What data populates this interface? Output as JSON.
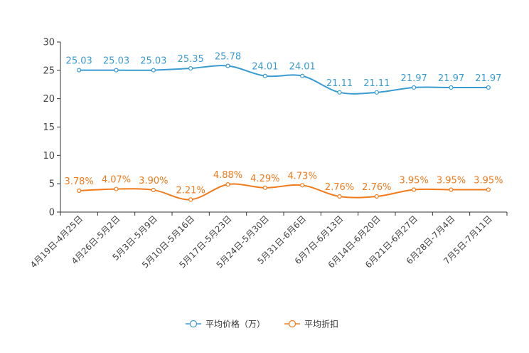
{
  "chart_data": {
    "type": "line",
    "title": "",
    "xlabel": "",
    "ylabel": "",
    "ylim": [
      0,
      30
    ],
    "yticks": [
      0,
      5,
      10,
      15,
      20,
      25,
      30
    ],
    "grid": false,
    "legend_position": "bottom-center",
    "categories": [
      "4月19日-4月25日",
      "4月26日-5月2日",
      "5月3日-5月9日",
      "5月10日-5月16日",
      "5月17日-5月23日",
      "5月24日-5月30日",
      "5月31日-6月6日",
      "6月7日-6月13日",
      "6月14日-6月20日",
      "6月21日-6月27日",
      "6月28日-7月4日",
      "7月5日-7月11日"
    ],
    "series": [
      {
        "name": "平均价格（万）",
        "color": "#3a9bd0",
        "values": [
          25.03,
          25.03,
          25.03,
          25.35,
          25.78,
          24.01,
          24.01,
          21.11,
          21.11,
          21.97,
          21.97,
          21.97
        ],
        "labels": [
          "25.03",
          "25.03",
          "25.03",
          "25.35",
          "25.78",
          "24.01",
          "24.01",
          "21.11",
          "21.11",
          "21.97",
          "21.97",
          "21.97"
        ]
      },
      {
        "name": "平均折扣",
        "color": "#f07b1c",
        "values": [
          3.78,
          4.07,
          3.9,
          2.21,
          4.88,
          4.29,
          4.73,
          2.76,
          2.76,
          3.95,
          3.95,
          3.95
        ],
        "labels": [
          "3.78%",
          "4.07%",
          "3.90%",
          "2.21%",
          "4.88%",
          "4.29%",
          "4.73%",
          "2.76%",
          "2.76%",
          "3.95%",
          "3.95%",
          "3.95%"
        ]
      }
    ]
  }
}
